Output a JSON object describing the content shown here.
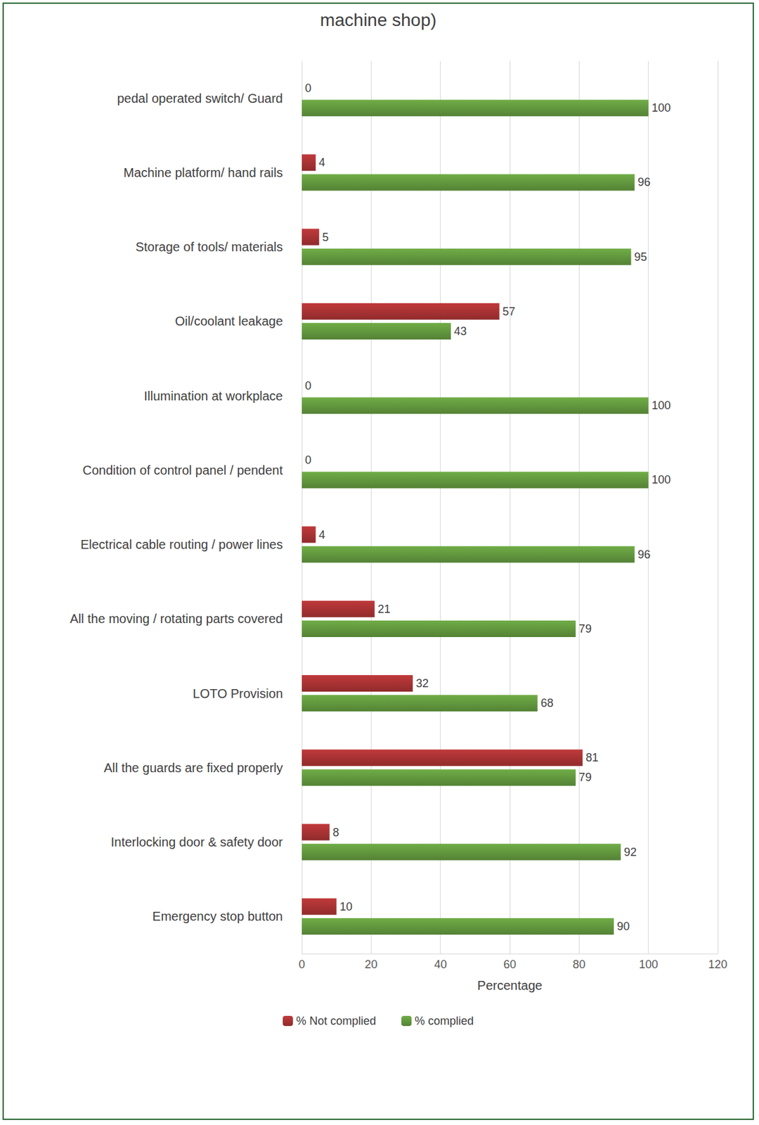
{
  "chart_data": {
    "type": "bar",
    "orientation": "horizontal",
    "title": "machine shop)",
    "categories": [
      "pedal operated switch/ Guard",
      "Machine platform/ hand rails",
      "Storage of tools/ materials",
      "Oil/coolant leakage",
      "Illumination at workplace",
      "Condition of control panel / pendent",
      "Electrical cable routing / power lines",
      "All the moving / rotating parts covered",
      "LOTO Provision",
      "All the guards are fixed properly",
      "Interlocking door & safety door",
      "Emergency stop button"
    ],
    "series": [
      {
        "name": "% Not complied",
        "color": "#c0393b",
        "values": [
          0,
          4,
          5,
          57,
          0,
          0,
          4,
          21,
          32,
          81,
          8,
          10
        ]
      },
      {
        "name": "% complied",
        "color": "#70ad47",
        "values": [
          100,
          96,
          95,
          43,
          100,
          100,
          96,
          79,
          68,
          79,
          92,
          90
        ]
      }
    ],
    "xlabel": "Percentage",
    "xlim": [
      0,
      120
    ],
    "xticks": [
      0,
      20,
      40,
      60,
      80,
      100,
      120
    ],
    "grid": true,
    "legend": "bottom",
    "data_labels": true
  }
}
